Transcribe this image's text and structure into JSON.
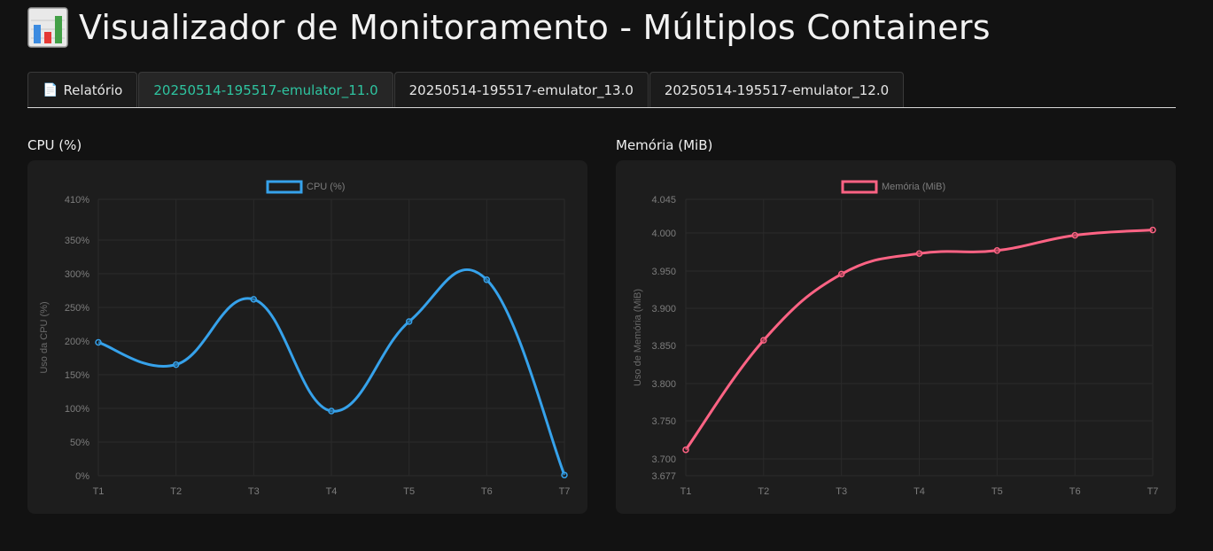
{
  "header": {
    "title": "Visualizador de Monitoramento - Múltiplos Containers",
    "icon": "bar-chart-icon"
  },
  "tabs": [
    {
      "label": "Relatório",
      "icon": "document-icon",
      "active": false
    },
    {
      "label": "20250514-195517-emulator_11.0",
      "active": true
    },
    {
      "label": "20250514-195517-emulator_13.0",
      "active": false
    },
    {
      "label": "20250514-195517-emulator_12.0",
      "active": false
    }
  ],
  "colors": {
    "active_tab_text": "#2ec4a0",
    "cpu_series": "#36a2eb",
    "memory_series": "#ff6384"
  },
  "panels": {
    "cpu_title": "CPU (%)",
    "memory_title": "Memória (MiB)"
  },
  "chart_data": [
    {
      "type": "line",
      "legend": "CPU (%)",
      "legend_position": "top-center",
      "ylabel": "Uso da CPU (%)",
      "x": [
        "T1",
        "T2",
        "T3",
        "T4",
        "T5",
        "T6",
        "T7"
      ],
      "series": [
        {
          "name": "CPU (%)",
          "values": [
            198,
            165,
            262,
            96,
            229,
            291,
            1
          ]
        }
      ],
      "ylim": [
        0,
        410
      ],
      "yticks": [
        0,
        50,
        100,
        150,
        200,
        250,
        300,
        350,
        410
      ],
      "ytick_labels": [
        "0%",
        "50%",
        "100%",
        "150%",
        "200%",
        "250%",
        "300%",
        "350%",
        "410%"
      ],
      "grid": true
    },
    {
      "type": "line",
      "legend": "Memória (MiB)",
      "legend_position": "top-center",
      "ylabel": "Uso de Memória (MiB)",
      "x": [
        "T1",
        "T2",
        "T3",
        "T4",
        "T5",
        "T6",
        "T7"
      ],
      "series": [
        {
          "name": "Memória (MiB)",
          "values": [
            3.712,
            3.857,
            3.946,
            3.973,
            3.977,
            3.997,
            4.004
          ]
        }
      ],
      "ylim": [
        3.677,
        4.045
      ],
      "yticks": [
        3.677,
        3.7,
        3.75,
        3.8,
        3.85,
        3.9,
        3.95,
        4.0,
        4.045
      ],
      "ytick_labels": [
        "3.677",
        "3.700",
        "3.750",
        "3.800",
        "3.850",
        "3.900",
        "3.950",
        "4.000",
        "4.045"
      ],
      "grid": true
    }
  ]
}
